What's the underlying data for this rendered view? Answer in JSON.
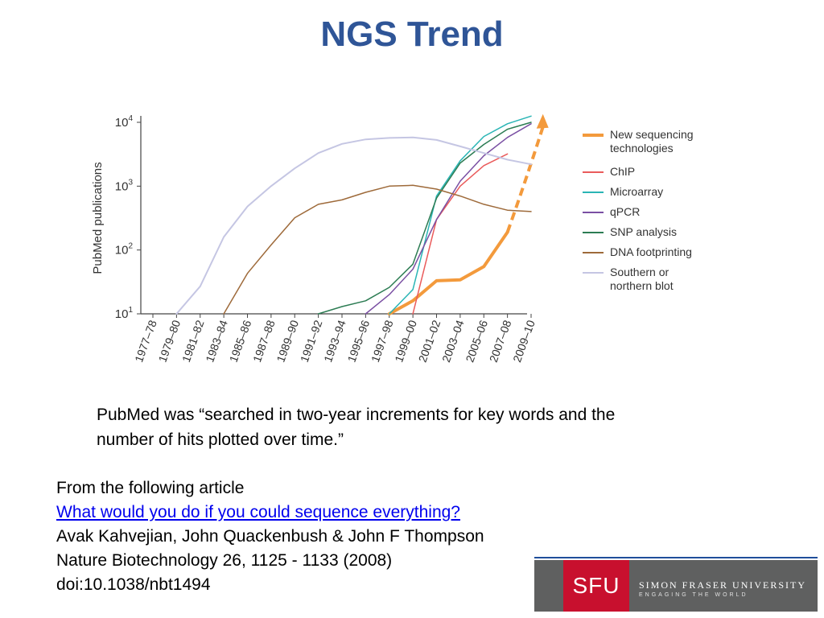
{
  "slide": {
    "title": "NGS Trend",
    "caption_line1": "PubMed was “searched in two-year increments for key words and the",
    "caption_line2": "number of hits plotted over time.”",
    "source": {
      "intro": "From the following article",
      "link_text": "What would you do if you could sequence everything?",
      "authors": "Avak Kahvejian, John Quackenbush & John F Thompson",
      "journal": "Nature Biotechnology 26, 1125 - 1133 (2008)",
      "doi": "doi:10.1038/nbt1494"
    },
    "logo": {
      "mark": "SFU",
      "name": "SIMON FRASER UNIVERSITY",
      "tagline": "ENGAGING THE WORLD"
    },
    "title_color": "#2f5597",
    "link_color": "#0000ee"
  },
  "chart_data": {
    "type": "line",
    "xlabel": "",
    "ylabel": "PubMed publications",
    "yscale": "log",
    "ylim": [
      10,
      10000
    ],
    "y_ticks": [
      {
        "value": 10,
        "base": "10",
        "exp": "1"
      },
      {
        "value": 100,
        "base": "10",
        "exp": "2"
      },
      {
        "value": 1000,
        "base": "10",
        "exp": "3"
      },
      {
        "value": 10000,
        "base": "10",
        "exp": "4"
      }
    ],
    "categories": [
      "1977–78",
      "1979–80",
      "1981–82",
      "1983–84",
      "1985–86",
      "1987–88",
      "1989–90",
      "1991–92",
      "1993–94",
      "1995–96",
      "1997–98",
      "1999–00",
      "2001–02",
      "2003–04",
      "2005–06",
      "2007–08",
      "2009–10"
    ],
    "grid": false,
    "legend": "right",
    "series": [
      {
        "name": "New sequencing technologies",
        "color": "#f39a3c",
        "width": 4,
        "values": [
          null,
          null,
          null,
          null,
          null,
          null,
          null,
          null,
          null,
          null,
          10,
          16,
          33,
          34,
          55,
          190,
          null
        ],
        "projection": {
          "from_index": 15,
          "from_value": 190,
          "to_index": 15.8,
          "to_value": 1300,
          "to_arrow_value": 12000,
          "to_arrow_index": 16.5
        }
      },
      {
        "name": "ChIP",
        "color": "#ea5b5b",
        "width": 1.5,
        "values": [
          null,
          null,
          null,
          null,
          null,
          null,
          null,
          null,
          null,
          null,
          null,
          10,
          300,
          1000,
          2100,
          3200,
          null
        ]
      },
      {
        "name": "Microarray",
        "color": "#2ab5b5",
        "width": 1.5,
        "values": [
          null,
          null,
          null,
          null,
          null,
          null,
          null,
          null,
          null,
          null,
          10,
          24,
          700,
          2500,
          6000,
          9500,
          12500
        ]
      },
      {
        "name": "qPCR",
        "color": "#7a4fa3",
        "width": 1.5,
        "values": [
          null,
          null,
          null,
          null,
          null,
          null,
          null,
          null,
          null,
          10,
          20,
          50,
          300,
          1200,
          3000,
          5800,
          9500
        ]
      },
      {
        "name": "SNP analysis",
        "color": "#2c7c53",
        "width": 1.5,
        "values": [
          null,
          null,
          null,
          null,
          null,
          null,
          null,
          10,
          13,
          16,
          26,
          60,
          650,
          2300,
          4500,
          7800,
          10000
        ]
      },
      {
        "name": "DNA footprinting",
        "color": "#9e6a3a",
        "width": 1.5,
        "values": [
          null,
          null,
          null,
          10,
          43,
          120,
          320,
          520,
          610,
          800,
          1000,
          1030,
          900,
          700,
          520,
          420,
          400
        ]
      },
      {
        "name": "Southern or northern blot",
        "color": "#c5c6e3",
        "width": 2,
        "values": [
          null,
          10,
          27,
          160,
          480,
          1000,
          1900,
          3300,
          4600,
          5400,
          5700,
          5800,
          5300,
          4200,
          3300,
          2600,
          2200
        ]
      }
    ]
  }
}
